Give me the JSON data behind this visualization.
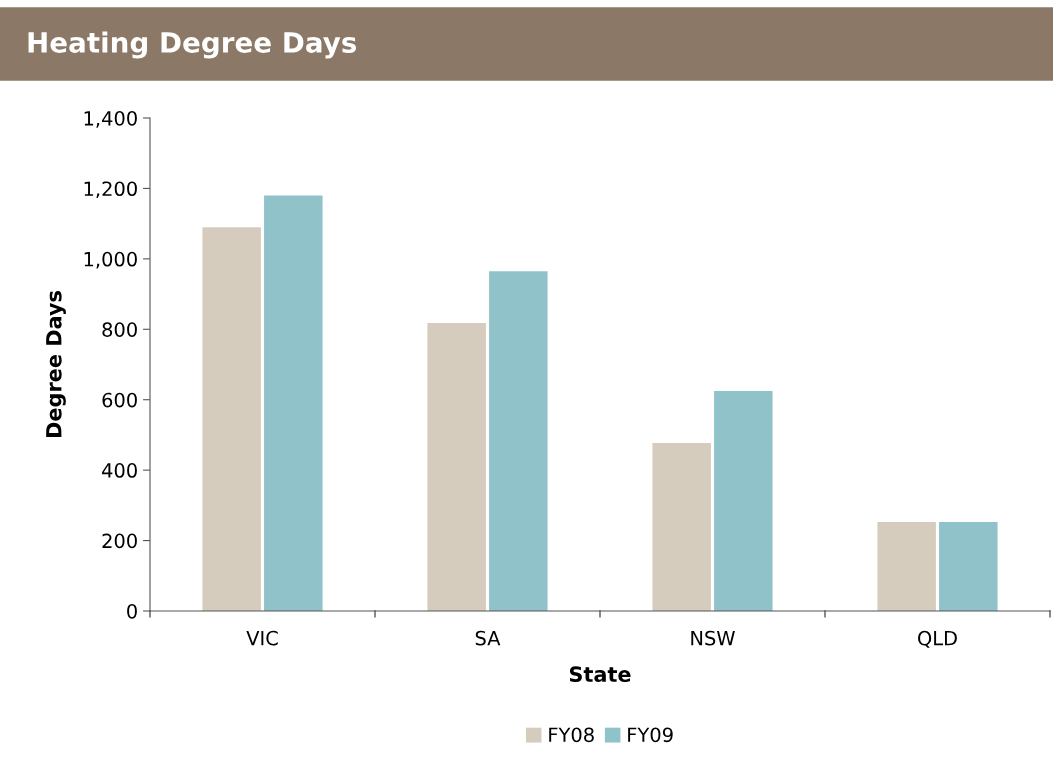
{
  "chart_data": {
    "type": "bar",
    "title": "Heating Degree Days",
    "xlabel": "State",
    "ylabel": "Degree Days",
    "categories": [
      "VIC",
      "SA",
      "NSW",
      "QLD"
    ],
    "series": [
      {
        "name": "FY08",
        "color": "#d6ccbd",
        "values": [
          1090,
          818,
          477,
          253
        ]
      },
      {
        "name": "FY09",
        "color": "#8fc3c9",
        "values": [
          1180,
          965,
          625,
          253
        ]
      }
    ],
    "ylim": [
      0,
      1400
    ],
    "yticks": [
      {
        "value": 0,
        "label": "0"
      },
      {
        "value": 200,
        "label": "200"
      },
      {
        "value": 400,
        "label": "400"
      },
      {
        "value": 600,
        "label": "600"
      },
      {
        "value": 800,
        "label": "800"
      },
      {
        "value": 1000,
        "label": "1,000"
      },
      {
        "value": 1200,
        "label": "1,200"
      },
      {
        "value": 1400,
        "label": "1,400"
      }
    ],
    "grid": false,
    "legend": "bottom"
  }
}
